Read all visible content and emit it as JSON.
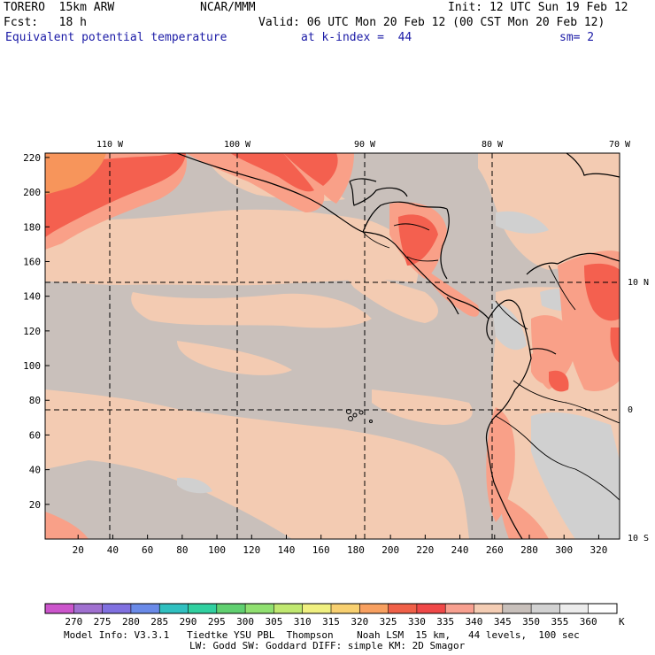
{
  "header": {
    "model_name": "TORERO  15km ARW",
    "org": "NCAR/MMM",
    "init": "Init: 12 UTC Sun 19 Feb 12",
    "fcst": "Fcst:   18 h",
    "valid": "Valid: 06 UTC Mon 20 Feb 12 (00 CST Mon 20 Feb 12)",
    "field": "Equivalent potential temperature",
    "level": "at k-index =  44",
    "smoothing": "sm= 2"
  },
  "map": {
    "top_lon_labels": [
      "110 W",
      "100 W",
      "90 W",
      "80 W",
      "70 W"
    ],
    "right_lat_labels": [
      "10 N",
      "0",
      "10 S"
    ],
    "y_grid_labels": [
      "220",
      "200",
      "180",
      "160",
      "140",
      "120",
      "100",
      "80",
      "60",
      "40",
      "20"
    ],
    "x_grid_labels": [
      "20",
      "40",
      "60",
      "80",
      "100",
      "120",
      "140",
      "160",
      "180",
      "200",
      "220",
      "240",
      "260",
      "280",
      "300",
      "320"
    ],
    "colors": {
      "base_gray": "#c9c0bb",
      "peach": "#f3cbb2",
      "salmon": "#f9a088",
      "red": "#f4604f",
      "orange": "#f7955b",
      "light_gray": "#d0d0d0"
    }
  },
  "colorbar": {
    "labels": [
      "270",
      "275",
      "280",
      "285",
      "290",
      "295",
      "300",
      "305",
      "310",
      "315",
      "320",
      "325",
      "330",
      "335",
      "340",
      "345",
      "350",
      "355",
      "360"
    ],
    "unit": "K",
    "colors": [
      "#cc55cc",
      "#a070d0",
      "#8070e0",
      "#6a8ae8",
      "#30c0c0",
      "#30d0a0",
      "#60d070",
      "#90e070",
      "#c0e870",
      "#f0f080",
      "#f8d070",
      "#f8a060",
      "#f06048",
      "#f04848",
      "#f8a090",
      "#f4cdb4",
      "#c8c0bb",
      "#d2d2d2",
      "#ececec",
      "#ffffff"
    ]
  },
  "footer": {
    "line1": "Model Info: V3.3.1   Tiedtke YSU PBL  Thompson    Noah LSM  15 km,   44 levels,  100 sec",
    "line2": "LW: Godd SW: Goddard DIFF: simple KM: 2D Smagor"
  }
}
